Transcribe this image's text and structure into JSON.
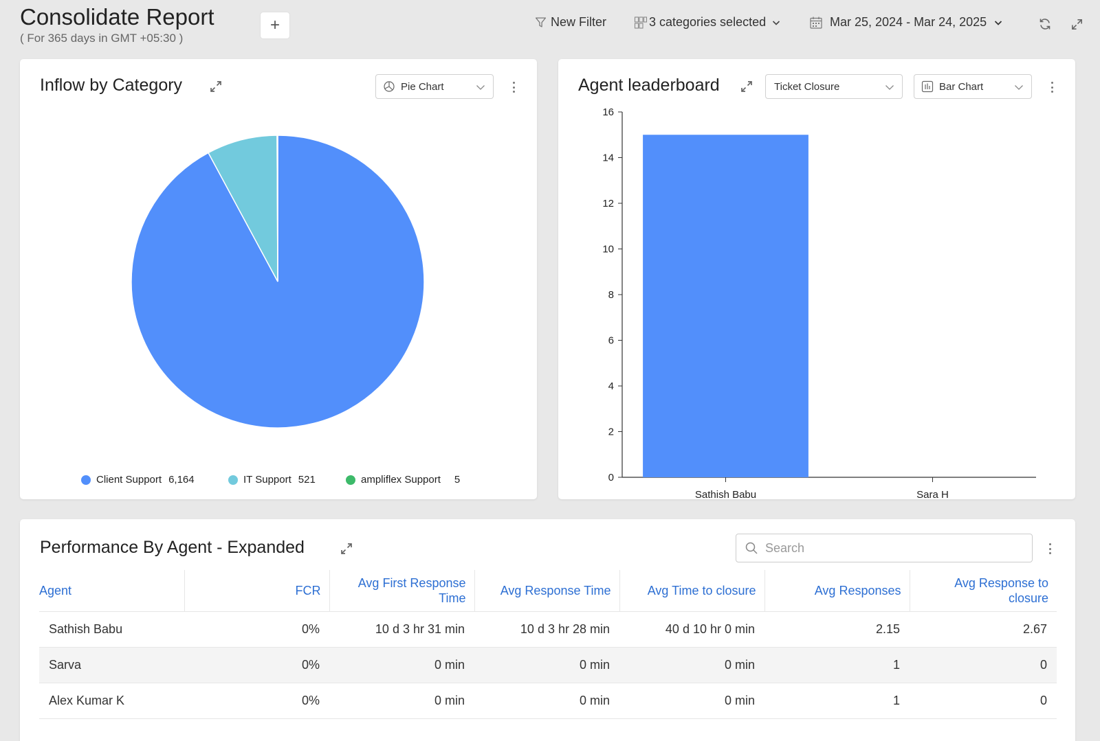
{
  "header": {
    "title": "Consolidate Report",
    "subtitle": "( For 365 days in GMT +05:30 )",
    "add_label": "+",
    "new_filter_label": "New Filter",
    "categories_label": "3 categories selected",
    "date_range_label": "Mar 25, 2024 - Mar 24, 2025"
  },
  "inflow_card": {
    "title": "Inflow by Category",
    "chart_type_label": "Pie Chart"
  },
  "leaderboard_card": {
    "title": "Agent leaderboard",
    "metric_label": "Ticket Closure",
    "chart_type_label": "Bar Chart"
  },
  "performance_card": {
    "title": "Performance By Agent - Expanded",
    "search_placeholder": "Search",
    "columns": [
      "Agent",
      "FCR",
      "Avg First Response Time",
      "Avg Response Time",
      "Avg Time to closure",
      "Avg Responses",
      "Avg Response to closure"
    ],
    "rows": [
      [
        "Sathish Babu",
        "0%",
        "10 d 3 hr 31 min",
        "10 d 3 hr 28 min",
        "40 d 10 hr 0 min",
        "2.15",
        "2.67"
      ],
      [
        "Sarva",
        "0%",
        "0 min",
        "0 min",
        "0 min",
        "1",
        "0"
      ],
      [
        "Alex Kumar K",
        "0%",
        "0 min",
        "0 min",
        "0 min",
        "1",
        "0"
      ]
    ]
  },
  "colors": {
    "client_support": "#528ffb",
    "it_support": "#72cadd",
    "ampliflex_support": "#3dba6a",
    "bar": "#528ffb",
    "link": "#2d6fd3"
  },
  "chart_data": [
    {
      "type": "pie",
      "title": "Inflow by Category",
      "categories": [
        "Client Support",
        "IT Support",
        "ampliflex Support"
      ],
      "values": [
        6164,
        521,
        5
      ],
      "value_labels": [
        "6,164",
        "521",
        "5"
      ],
      "legend": "bottom"
    },
    {
      "type": "bar",
      "title": "Agent leaderboard",
      "categories": [
        "Sathish Babu",
        "Sara H"
      ],
      "series": [
        {
          "name": "Ticket Closure",
          "values": [
            15,
            0
          ]
        }
      ],
      "ylim": [
        0,
        16
      ],
      "yticks": [
        "0",
        "2",
        "4",
        "6",
        "8",
        "10",
        "12",
        "14",
        "16"
      ],
      "grid": false,
      "legend": "bottom"
    }
  ]
}
